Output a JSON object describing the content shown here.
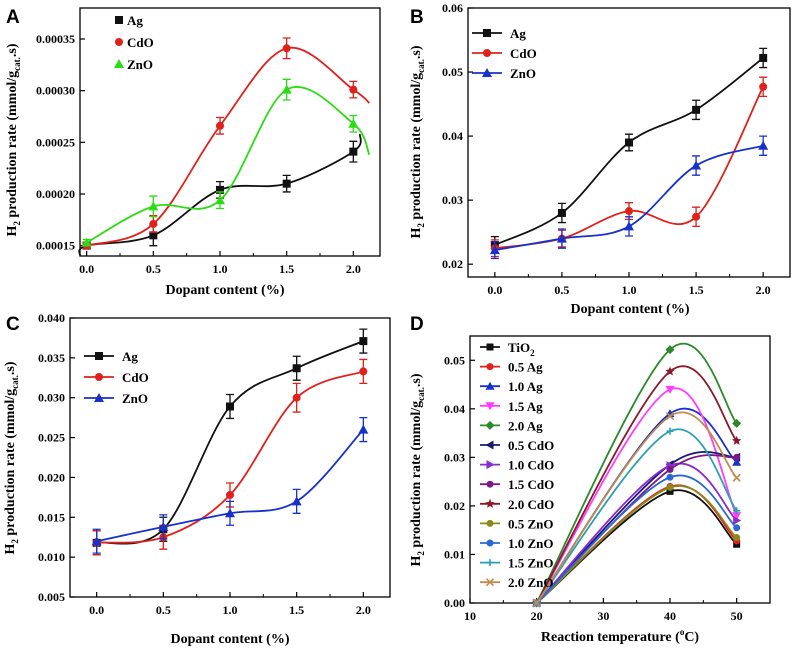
{
  "colors": {
    "Ag": "#111111",
    "CdO": "#e0211b",
    "ZnO_A": "#2bdc14",
    "ZnO": "#1731c9",
    "TiO2": "#111111",
    "0.5 Ag": "#e0211b",
    "1.0 Ag": "#1731c9",
    "1.5 Ag": "#ff3cff",
    "2.0 Ag": "#2a8a2a",
    "0.5 CdO": "#1a1a70",
    "1.0 CdO": "#8a2ad0",
    "1.5 CdO": "#7a1a8a",
    "2.0 CdO": "#8a1a2a",
    "0.5 ZnO": "#8a8a1a",
    "1.0 ZnO": "#2a6ad0",
    "1.5 ZnO": "#2aa0b0",
    "2.0 ZnO": "#c08a50"
  },
  "chart_data": [
    {
      "panel": "A",
      "type": "scatter-line",
      "xlabel": "Dopant content (%)",
      "ylabel": "H2 production rate (mmol/gcat..s)",
      "xlim": [
        -0.05,
        2.2
      ],
      "ylim": [
        0.00014,
        0.00038
      ],
      "xticks": [
        "0.0",
        "0.5",
        "1.0",
        "1.5",
        "2.0"
      ],
      "yticks": [
        "0.00015",
        "0.00020",
        "0.00025",
        "0.00030",
        "0.00035"
      ],
      "x": [
        0,
        0.5,
        1.0,
        1.5,
        2.0
      ],
      "series": [
        {
          "name": "Ag",
          "marker": "square",
          "values": [
            0.00015,
            0.00016,
            0.000204,
            0.00021,
            0.000241
          ],
          "err": [
            3e-06,
            1e-05,
            8e-06,
            8e-06,
            1e-05
          ]
        },
        {
          "name": "CdO",
          "marker": "circle",
          "values": [
            0.00015,
            0.000171,
            0.000266,
            0.000341,
            0.000301
          ],
          "err": [
            3e-06,
            8e-06,
            8e-06,
            1e-05,
            8e-06
          ]
        },
        {
          "name": "ZnO",
          "marker": "triangle",
          "values": [
            0.000153,
            0.000188,
            0.000194,
            0.000301,
            0.000268
          ],
          "err": [
            3e-06,
            1e-05,
            8e-06,
            1e-05,
            8e-06
          ]
        }
      ],
      "legend": "top-left"
    },
    {
      "panel": "B",
      "type": "scatter-line",
      "xlabel": "Dopant content (%)",
      "ylabel": "H2 production rate (mmol/gcat..s)",
      "xlim": [
        -0.2,
        2.2
      ],
      "ylim": [
        0.018,
        0.06
      ],
      "xticks": [
        "0.0",
        "0.5",
        "1.0",
        "1.5",
        "2.0"
      ],
      "yticks": [
        "0.02",
        "0.03",
        "0.04",
        "0.05",
        "0.06"
      ],
      "x": [
        0,
        0.5,
        1.0,
        1.5,
        2.0
      ],
      "series": [
        {
          "name": "Ag",
          "marker": "square",
          "values": [
            0.023,
            0.028,
            0.039,
            0.0441,
            0.0522
          ],
          "err": [
            0.0013,
            0.0015,
            0.0013,
            0.0015,
            0.0015
          ]
        },
        {
          "name": "CdO",
          "marker": "circle",
          "values": [
            0.0225,
            0.024,
            0.0283,
            0.0274,
            0.0477
          ],
          "err": [
            0.0013,
            0.0013,
            0.0013,
            0.0015,
            0.0015
          ]
        },
        {
          "name": "ZnO",
          "marker": "triangle",
          "values": [
            0.0222,
            0.024,
            0.0259,
            0.0354,
            0.0385
          ],
          "err": [
            0.0013,
            0.0015,
            0.0015,
            0.0015,
            0.0015
          ]
        }
      ],
      "legend": "top-left"
    },
    {
      "panel": "C",
      "type": "scatter-line",
      "xlabel": "Dopant content (%)",
      "ylabel": "H2 production rate (mmol/gcat..s)",
      "xlim": [
        -0.2,
        2.2
      ],
      "ylim": [
        0.005,
        0.04
      ],
      "xticks": [
        "0.0",
        "0.5",
        "1.0",
        "1.5",
        "2.0"
      ],
      "yticks": [
        "0.005",
        "0.010",
        "0.015",
        "0.020",
        "0.025",
        "0.030",
        "0.035",
        "0.040"
      ],
      "x": [
        0,
        0.5,
        1.0,
        1.5,
        2.0
      ],
      "series": [
        {
          "name": "Ag",
          "marker": "square",
          "values": [
            0.0118,
            0.0135,
            0.0289,
            0.0337,
            0.0371
          ],
          "err": [
            0.0015,
            0.0015,
            0.0015,
            0.0015,
            0.0015
          ]
        },
        {
          "name": "CdO",
          "marker": "circle",
          "values": [
            0.0118,
            0.0125,
            0.0178,
            0.03,
            0.0333
          ],
          "err": [
            0.0015,
            0.0015,
            0.0015,
            0.0018,
            0.0015
          ]
        },
        {
          "name": "ZnO",
          "marker": "triangle",
          "values": [
            0.012,
            0.0138,
            0.0155,
            0.017,
            0.026
          ],
          "err": [
            0.0015,
            0.0015,
            0.0015,
            0.0015,
            0.0015
          ]
        }
      ],
      "legend": "top-left"
    },
    {
      "panel": "D",
      "type": "scatter-line",
      "xlabel": "Reaction temperature (oC)",
      "ylabel": "H2 production rate (mmol/gcat..s)",
      "xlim": [
        10,
        55
      ],
      "ylim": [
        0,
        0.055
      ],
      "xticks": [
        "10",
        "20",
        "30",
        "40",
        "50"
      ],
      "yticks": [
        "0.00",
        "0.01",
        "0.02",
        "0.03",
        "0.04",
        "0.05"
      ],
      "x": [
        20,
        40,
        50
      ],
      "series": [
        {
          "name": "TiO2",
          "label_main": "TiO",
          "label_sub": "2",
          "marker": "square",
          "values": [
            0,
            0.023,
            0.0121
          ]
        },
        {
          "name": "0.5 Ag",
          "marker": "circle",
          "values": [
            0,
            0.024,
            0.0128
          ]
        },
        {
          "name": "1.0 Ag",
          "marker": "triangle",
          "values": [
            0,
            0.039,
            0.029
          ]
        },
        {
          "name": "1.5 Ag",
          "marker": "triangle-down",
          "values": [
            0,
            0.044,
            0.018
          ]
        },
        {
          "name": "2.0 Ag",
          "marker": "diamond",
          "values": [
            0,
            0.0522,
            0.037
          ]
        },
        {
          "name": "0.5 CdO",
          "marker": "triangle-left",
          "values": [
            0,
            0.0285,
            0.03
          ]
        },
        {
          "name": "1.0 CdO",
          "marker": "triangle-right",
          "values": [
            0,
            0.0283,
            0.017
          ]
        },
        {
          "name": "1.5 CdO",
          "marker": "circle",
          "values": [
            0,
            0.0275,
            0.03
          ]
        },
        {
          "name": "2.0 CdO",
          "marker": "star",
          "values": [
            0,
            0.0477,
            0.0334
          ]
        },
        {
          "name": "0.5 ZnO",
          "marker": "circle",
          "values": [
            0,
            0.0238,
            0.0135
          ]
        },
        {
          "name": "1.0 ZnO",
          "marker": "circle",
          "values": [
            0,
            0.0259,
            0.0155
          ]
        },
        {
          "name": "1.5 ZnO",
          "marker": "plus",
          "values": [
            0,
            0.0354,
            0.019
          ]
        },
        {
          "name": "2.0 ZnO",
          "marker": "x",
          "values": [
            0,
            0.0385,
            0.0258
          ]
        }
      ],
      "legend": "top-left"
    }
  ]
}
